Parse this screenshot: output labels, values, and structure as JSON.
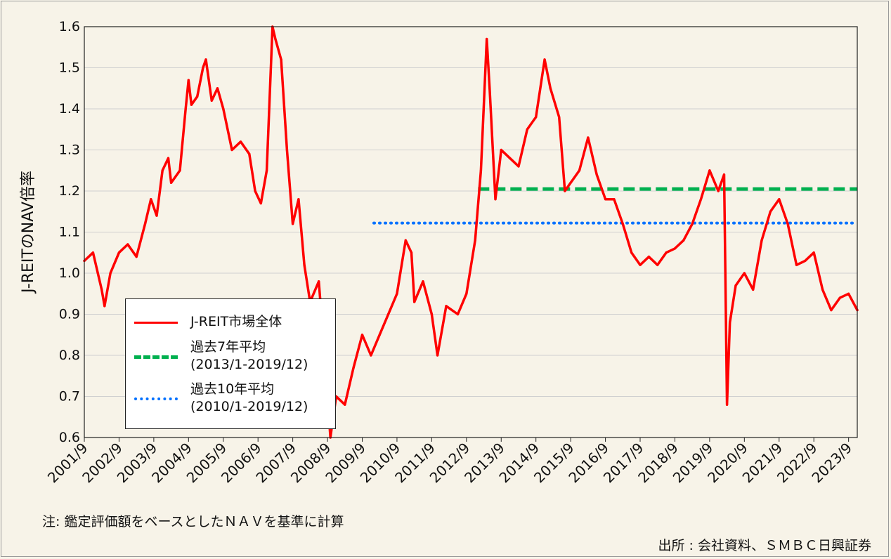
{
  "chart_data": {
    "type": "line",
    "ylabel": "J-REITのNAV倍率",
    "ylim": [
      0.6,
      1.6
    ],
    "yticks": [
      "0.6",
      "0.7",
      "0.8",
      "0.9",
      "1.0",
      "1.1",
      "1.2",
      "1.3",
      "1.4",
      "1.5",
      "1.6"
    ],
    "xlim": [
      "2001/9",
      "2023/12"
    ],
    "xticks": [
      "2001/9",
      "2002/9",
      "2003/9",
      "2004/9",
      "2005/9",
      "2006/9",
      "2007/9",
      "2008/9",
      "2009/9",
      "2010/9",
      "2011/9",
      "2012/9",
      "2013/9",
      "2014/9",
      "2015/9",
      "2016/9",
      "2017/9",
      "2018/9",
      "2019/9",
      "2020/9",
      "2021/9",
      "2022/9",
      "2023/9"
    ],
    "grid": "horizontal",
    "legend_position": "bottom-left",
    "series": [
      {
        "name": "J-REIT市場全体",
        "color": "#ff0000",
        "style": "solid",
        "points": [
          [
            "2001/9",
            1.03
          ],
          [
            "2001/12",
            1.05
          ],
          [
            "2002/3",
            0.96
          ],
          [
            "2002/4",
            0.92
          ],
          [
            "2002/6",
            1.0
          ],
          [
            "2002/9",
            1.05
          ],
          [
            "2002/12",
            1.07
          ],
          [
            "2003/3",
            1.04
          ],
          [
            "2003/6",
            1.12
          ],
          [
            "2003/8",
            1.18
          ],
          [
            "2003/10",
            1.14
          ],
          [
            "2003/12",
            1.25
          ],
          [
            "2004/2",
            1.28
          ],
          [
            "2004/3",
            1.22
          ],
          [
            "2004/6",
            1.25
          ],
          [
            "2004/8",
            1.4
          ],
          [
            "2004/9",
            1.47
          ],
          [
            "2004/10",
            1.41
          ],
          [
            "2004/12",
            1.43
          ],
          [
            "2005/2",
            1.5
          ],
          [
            "2005/3",
            1.52
          ],
          [
            "2005/5",
            1.42
          ],
          [
            "2005/7",
            1.45
          ],
          [
            "2005/9",
            1.4
          ],
          [
            "2005/12",
            1.3
          ],
          [
            "2006/3",
            1.32
          ],
          [
            "2006/6",
            1.29
          ],
          [
            "2006/8",
            1.2
          ],
          [
            "2006/10",
            1.17
          ],
          [
            "2006/12",
            1.25
          ],
          [
            "2007/2",
            1.6
          ],
          [
            "2007/3",
            1.57
          ],
          [
            "2007/5",
            1.52
          ],
          [
            "2007/7",
            1.3
          ],
          [
            "2007/9",
            1.12
          ],
          [
            "2007/11",
            1.18
          ],
          [
            "2008/1",
            1.02
          ],
          [
            "2008/3",
            0.93
          ],
          [
            "2008/6",
            0.98
          ],
          [
            "2008/8",
            0.8
          ],
          [
            "2008/10",
            0.6
          ],
          [
            "2008/12",
            0.7
          ],
          [
            "2009/3",
            0.68
          ],
          [
            "2009/6",
            0.77
          ],
          [
            "2009/9",
            0.85
          ],
          [
            "2009/12",
            0.8
          ],
          [
            "2010/3",
            0.85
          ],
          [
            "2010/6",
            0.9
          ],
          [
            "2010/9",
            0.95
          ],
          [
            "2010/12",
            1.08
          ],
          [
            "2011/2",
            1.05
          ],
          [
            "2011/3",
            0.93
          ],
          [
            "2011/6",
            0.98
          ],
          [
            "2011/9",
            0.9
          ],
          [
            "2011/11",
            0.8
          ],
          [
            "2012/2",
            0.92
          ],
          [
            "2012/6",
            0.9
          ],
          [
            "2012/9",
            0.95
          ],
          [
            "2012/12",
            1.08
          ],
          [
            "2013/2",
            1.25
          ],
          [
            "2013/4",
            1.57
          ],
          [
            "2013/5",
            1.45
          ],
          [
            "2013/7",
            1.18
          ],
          [
            "2013/9",
            1.3
          ],
          [
            "2013/12",
            1.28
          ],
          [
            "2014/3",
            1.26
          ],
          [
            "2014/6",
            1.35
          ],
          [
            "2014/9",
            1.38
          ],
          [
            "2014/12",
            1.52
          ],
          [
            "2015/2",
            1.45
          ],
          [
            "2015/5",
            1.38
          ],
          [
            "2015/7",
            1.2
          ],
          [
            "2015/9",
            1.22
          ],
          [
            "2015/12",
            1.25
          ],
          [
            "2016/3",
            1.33
          ],
          [
            "2016/6",
            1.24
          ],
          [
            "2016/9",
            1.18
          ],
          [
            "2016/12",
            1.18
          ],
          [
            "2017/3",
            1.12
          ],
          [
            "2017/6",
            1.05
          ],
          [
            "2017/9",
            1.02
          ],
          [
            "2017/12",
            1.04
          ],
          [
            "2018/3",
            1.02
          ],
          [
            "2018/6",
            1.05
          ],
          [
            "2018/9",
            1.06
          ],
          [
            "2018/12",
            1.08
          ],
          [
            "2019/3",
            1.12
          ],
          [
            "2019/6",
            1.18
          ],
          [
            "2019/9",
            1.25
          ],
          [
            "2019/12",
            1.2
          ],
          [
            "2020/2",
            1.24
          ],
          [
            "2020/3",
            0.68
          ],
          [
            "2020/4",
            0.88
          ],
          [
            "2020/6",
            0.97
          ],
          [
            "2020/9",
            1.0
          ],
          [
            "2020/12",
            0.96
          ],
          [
            "2021/3",
            1.08
          ],
          [
            "2021/6",
            1.15
          ],
          [
            "2021/9",
            1.18
          ],
          [
            "2021/12",
            1.12
          ],
          [
            "2022/3",
            1.02
          ],
          [
            "2022/6",
            1.03
          ],
          [
            "2022/9",
            1.05
          ],
          [
            "2022/12",
            0.96
          ],
          [
            "2023/3",
            0.91
          ],
          [
            "2023/6",
            0.94
          ],
          [
            "2023/9",
            0.95
          ],
          [
            "2023/12",
            0.91
          ]
        ]
      },
      {
        "name": "過去7年平均 (2013/1-2019/12)",
        "color": "#00b04f",
        "style": "dashed",
        "points": [
          [
            "2013/1",
            1.205
          ],
          [
            "2023/12",
            1.205
          ]
        ]
      },
      {
        "name": "過去10年平均 (2010/1-2019/12)",
        "color": "#0070ff",
        "style": "dotted",
        "points": [
          [
            "2010/1",
            1.122
          ],
          [
            "2023/12",
            1.122
          ]
        ]
      }
    ]
  },
  "legend": {
    "items": [
      {
        "line1": "J-REIT市場全体",
        "line2": ""
      },
      {
        "line1": "過去7年平均",
        "line2": "(2013/1-2019/12)"
      },
      {
        "line1": "過去10年平均",
        "line2": "(2010/1-2019/12)"
      }
    ]
  },
  "notes": {
    "left": "注: 鑑定評価額をベースとしたＮＡＶを基準に計算",
    "right": "出所 : 会社資料、ＳＭＢＣ日興証券"
  }
}
